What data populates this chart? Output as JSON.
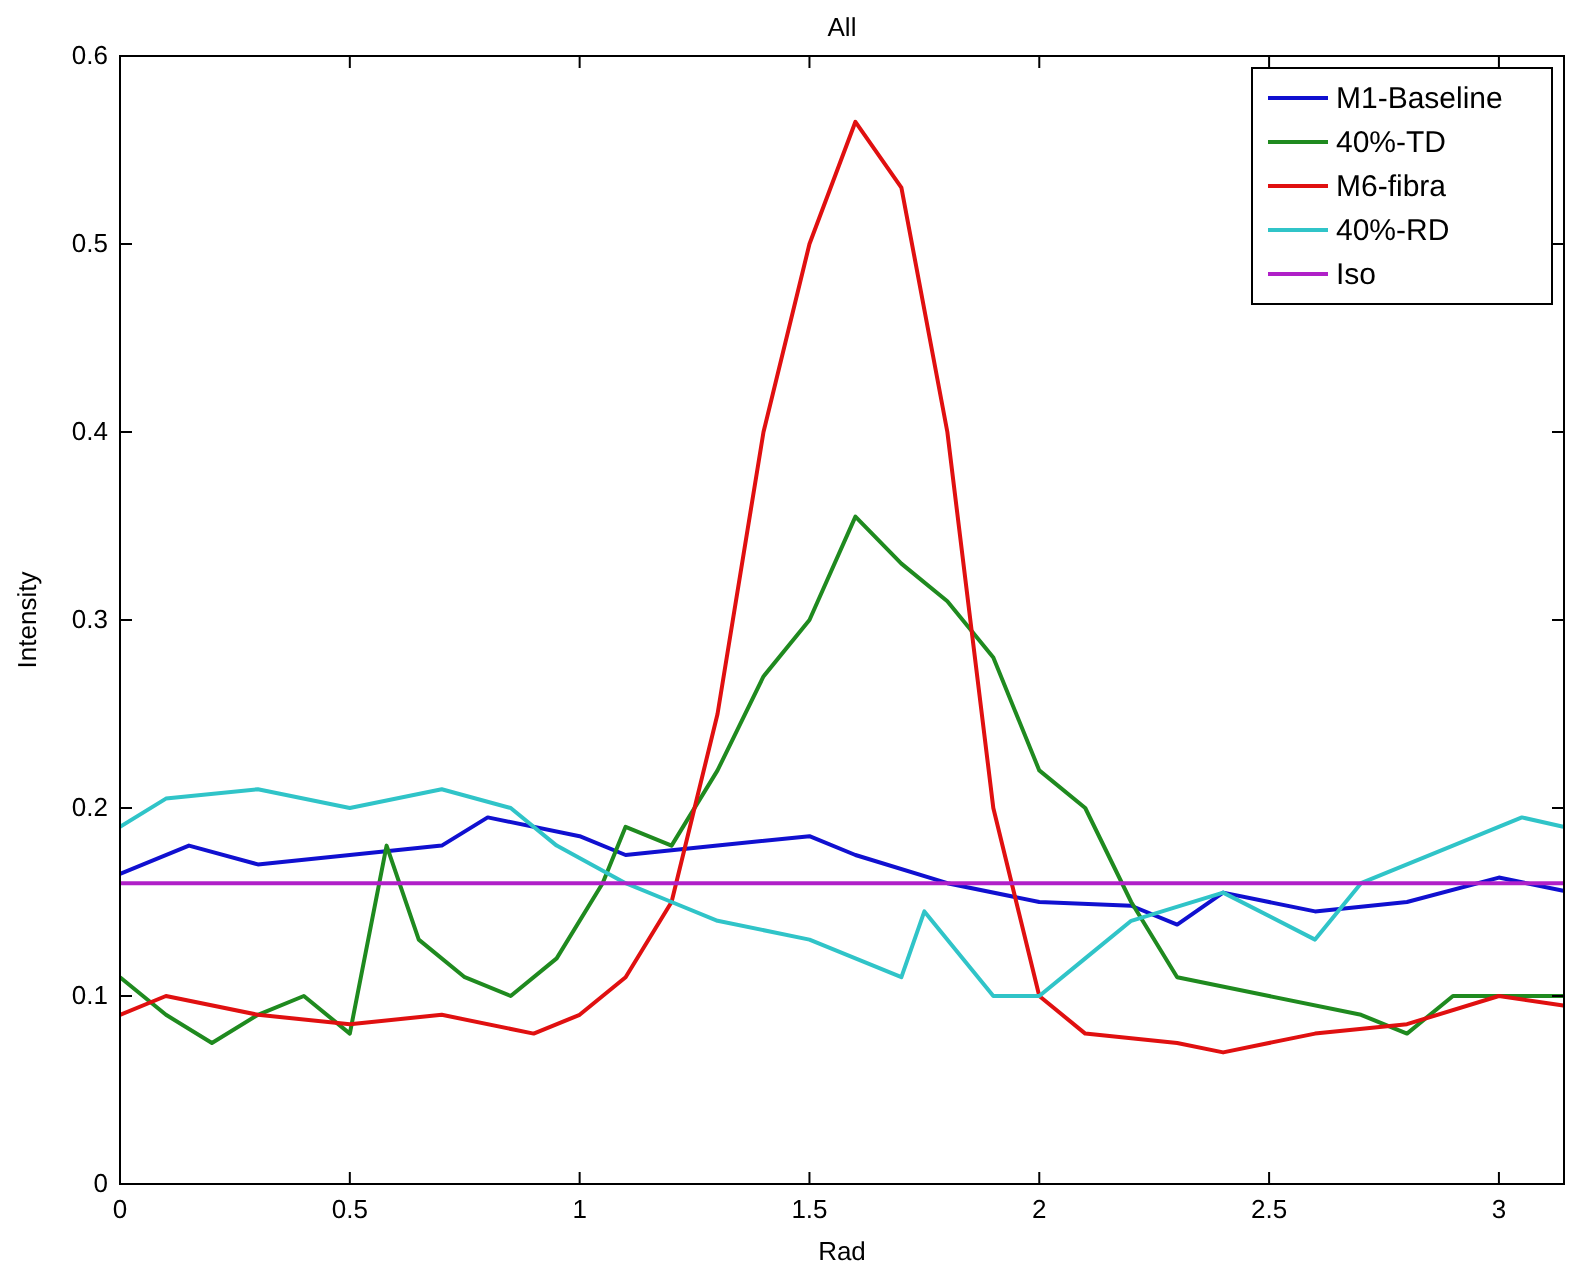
{
  "chart_data": {
    "type": "line",
    "title": "All",
    "xlabel": "Rad",
    "ylabel": "Intensity",
    "xlim": [
      0,
      3.1416
    ],
    "ylim": [
      0,
      0.6
    ],
    "xticks": [
      0,
      0.5,
      1,
      1.5,
      2,
      2.5,
      3
    ],
    "yticks": [
      0,
      0.1,
      0.2,
      0.3,
      0.4,
      0.5,
      0.6
    ],
    "grid": false,
    "legend": "top right",
    "line_style": "solid",
    "marker": "none",
    "series": [
      {
        "name": "M1-Baseline",
        "color": "#1010d0",
        "x": [
          0,
          0.15,
          0.3,
          0.5,
          0.7,
          0.8,
          1.0,
          1.1,
          1.3,
          1.5,
          1.6,
          1.8,
          2.0,
          2.2,
          2.3,
          2.4,
          2.6,
          2.8,
          3.0,
          3.14
        ],
        "values": [
          0.165,
          0.18,
          0.17,
          0.175,
          0.18,
          0.195,
          0.185,
          0.175,
          0.18,
          0.185,
          0.175,
          0.16,
          0.15,
          0.148,
          0.138,
          0.155,
          0.145,
          0.15,
          0.163,
          0.156
        ]
      },
      {
        "name": "40%-TD",
        "color": "#1f8a1f",
        "x": [
          0,
          0.1,
          0.2,
          0.3,
          0.4,
          0.5,
          0.58,
          0.65,
          0.75,
          0.85,
          0.95,
          1.05,
          1.1,
          1.2,
          1.3,
          1.4,
          1.5,
          1.6,
          1.7,
          1.8,
          1.9,
          2.0,
          2.1,
          2.2,
          2.3,
          2.5,
          2.7,
          2.8,
          2.9,
          3.14
        ],
        "values": [
          0.11,
          0.09,
          0.075,
          0.09,
          0.1,
          0.08,
          0.18,
          0.13,
          0.11,
          0.1,
          0.12,
          0.16,
          0.19,
          0.18,
          0.22,
          0.27,
          0.3,
          0.355,
          0.33,
          0.31,
          0.28,
          0.22,
          0.2,
          0.15,
          0.11,
          0.1,
          0.09,
          0.08,
          0.1,
          0.1
        ]
      },
      {
        "name": "M6-fibra",
        "color": "#e01010",
        "x": [
          0,
          0.1,
          0.3,
          0.5,
          0.7,
          0.9,
          1.0,
          1.1,
          1.2,
          1.3,
          1.4,
          1.5,
          1.6,
          1.7,
          1.8,
          1.9,
          2.0,
          2.1,
          2.3,
          2.4,
          2.6,
          2.8,
          3.0,
          3.14
        ],
        "values": [
          0.09,
          0.1,
          0.09,
          0.085,
          0.09,
          0.08,
          0.09,
          0.11,
          0.15,
          0.25,
          0.4,
          0.5,
          0.565,
          0.53,
          0.4,
          0.2,
          0.1,
          0.08,
          0.075,
          0.07,
          0.08,
          0.085,
          0.1,
          0.095
        ]
      },
      {
        "name": "40%-RD",
        "color": "#30c4c8",
        "x": [
          0,
          0.1,
          0.3,
          0.5,
          0.7,
          0.85,
          0.95,
          1.1,
          1.2,
          1.3,
          1.5,
          1.6,
          1.7,
          1.75,
          1.9,
          2.0,
          2.1,
          2.2,
          2.4,
          2.6,
          2.7,
          2.9,
          3.05,
          3.14
        ],
        "values": [
          0.19,
          0.205,
          0.21,
          0.2,
          0.21,
          0.2,
          0.18,
          0.16,
          0.15,
          0.14,
          0.13,
          0.12,
          0.11,
          0.145,
          0.1,
          0.1,
          0.12,
          0.14,
          0.155,
          0.13,
          0.16,
          0.18,
          0.195,
          0.19
        ]
      },
      {
        "name": "Iso",
        "color": "#b020c8",
        "x": [
          0,
          3.14
        ],
        "values": [
          0.16,
          0.16
        ]
      }
    ]
  }
}
